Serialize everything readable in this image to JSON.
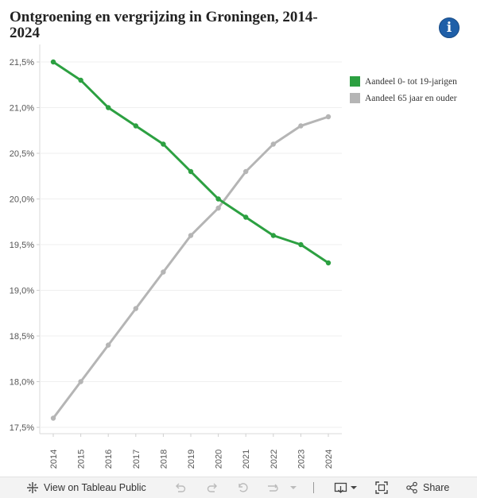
{
  "title": "Ontgroening en vergrijzing in Groningen, 2014-2024",
  "info_icon": "info-icon",
  "chart_data": {
    "type": "line",
    "title": "Ontgroening en vergrijzing in Groningen, 2014-2024",
    "xlabel": "",
    "ylabel": "",
    "categories": [
      "2014",
      "2015",
      "2016",
      "2017",
      "2018",
      "2019",
      "2020",
      "2021",
      "2022",
      "2023",
      "2024"
    ],
    "ylim": [
      17.5,
      21.6
    ],
    "yticks": [
      17.5,
      18.0,
      18.5,
      19.0,
      19.5,
      20.0,
      20.5,
      21.0,
      21.5
    ],
    "ytick_labels": [
      "17,5%",
      "18,0%",
      "18,5%",
      "19,0%",
      "19,5%",
      "20,0%",
      "20,5%",
      "21,0%",
      "21,5%"
    ],
    "grid": true,
    "legend_position": "top-right",
    "series": [
      {
        "name": "Aandeel 0- tot 19-jarigen",
        "color": "#2ca041",
        "values": [
          21.5,
          21.3,
          21.0,
          20.8,
          20.6,
          20.3,
          20.0,
          19.8,
          19.6,
          19.5,
          19.3
        ]
      },
      {
        "name": "Aandeel 65 jaar en ouder",
        "color": "#b5b5b5",
        "values": [
          17.6,
          18.0,
          18.4,
          18.8,
          19.2,
          19.6,
          19.9,
          20.3,
          20.6,
          20.8,
          20.9
        ]
      }
    ]
  },
  "toolbar": {
    "view_label": "View on Tableau Public",
    "share_label": "Share"
  }
}
